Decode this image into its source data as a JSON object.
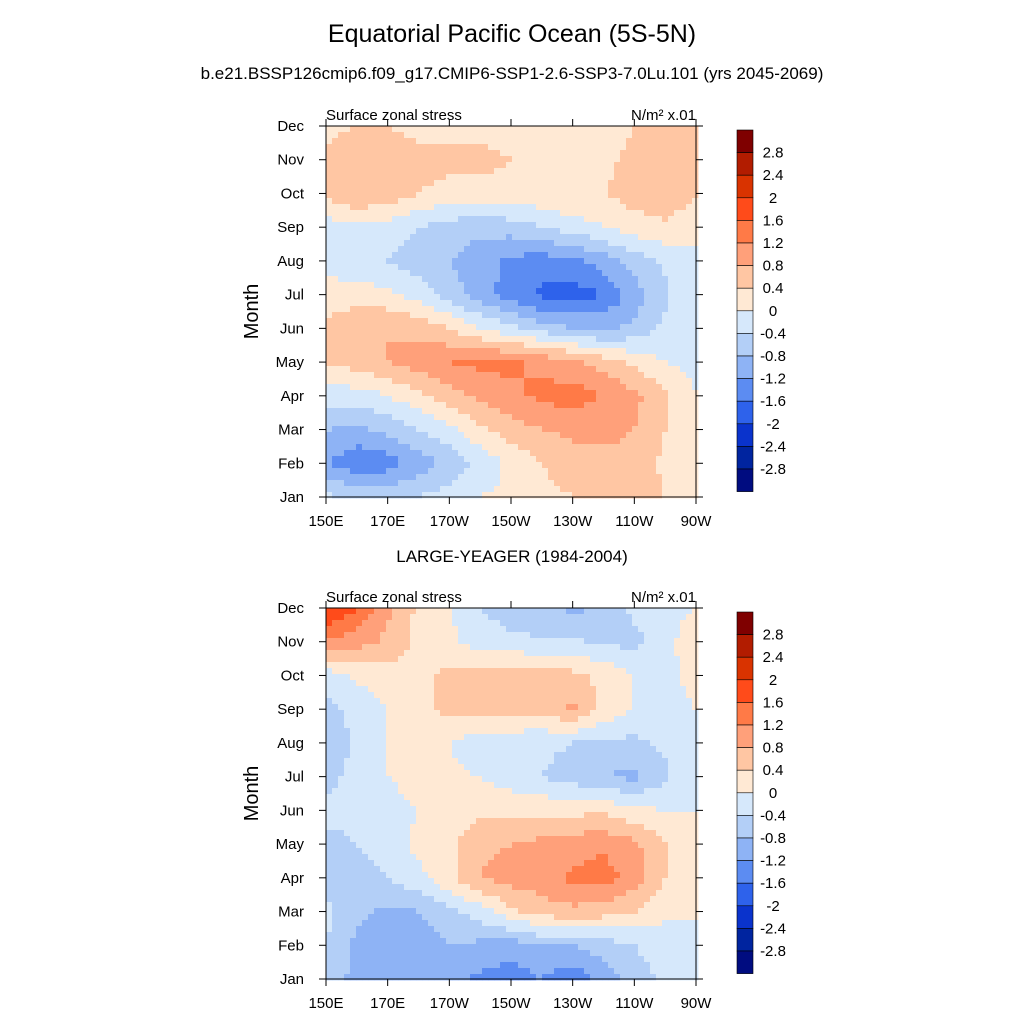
{
  "page": {
    "title": "Equatorial Pacific Ocean (5S-5N)",
    "subtitle": "b.e21.BSSP126cmip6.f09_g17.CMIP6-SSP1-2.6-SSP3-7.0Lu.101 (yrs 2045-2069)",
    "panel2_title": "LARGE-YEAGER (1984-2004)"
  },
  "colorbar": {
    "labels": [
      "2.8",
      "2.4",
      "2",
      "1.6",
      "1.2",
      "0.8",
      "0.4",
      "0",
      "-0.4",
      "-0.8",
      "-1.2",
      "-1.6",
      "-2",
      "-2.4",
      "-2.8"
    ],
    "colors": [
      "#7f0000",
      "#b21c00",
      "#d93300",
      "#ff4b1a",
      "#ff7a47",
      "#ffa07a",
      "#ffc6a3",
      "#ffe9d4",
      "#d6e8fb",
      "#b3cff7",
      "#8eb3f5",
      "#5c8cf2",
      "#2e62eb",
      "#0a33cc",
      "#00249f",
      "#000c80"
    ]
  },
  "chart_data": [
    {
      "type": "heatmap",
      "left_label": "Surface zonal stress",
      "right_label": "N/m² x.01",
      "ylabel": "Month",
      "x_ticks": [
        "150E",
        "170E",
        "170W",
        "150W",
        "130W",
        "110W",
        "90W"
      ],
      "y_ticks": [
        "Jan",
        "Feb",
        "Mar",
        "Apr",
        "May",
        "Jun",
        "Jul",
        "Aug",
        "Sep",
        "Oct",
        "Nov",
        "Dec"
      ],
      "xlim": [
        150,
        270
      ],
      "ylim": [
        1,
        12
      ],
      "levels": [
        -2.8,
        -2.4,
        -2,
        -1.6,
        -1.2,
        -0.8,
        -0.4,
        0,
        0.4,
        0.8,
        1.2,
        1.6,
        2,
        2.4,
        2.8
      ],
      "x_lon": [
        150,
        160,
        170,
        180,
        190,
        200,
        210,
        220,
        230,
        240,
        250,
        260,
        270
      ],
      "z_by_month": [
        [
          -0.3,
          -0.5,
          -0.5,
          -0.4,
          -0.2,
          0.0,
          0.1,
          0.3,
          0.4,
          0.5,
          0.6,
          0.4,
          0.0
        ],
        [
          -1.2,
          -1.5,
          -1.4,
          -1.0,
          -0.7,
          -0.3,
          0.1,
          0.4,
          0.6,
          0.7,
          0.7,
          0.3,
          0.0
        ],
        [
          -0.8,
          -0.9,
          -0.7,
          -0.4,
          -0.1,
          0.3,
          0.6,
          0.8,
          0.9,
          0.9,
          0.8,
          0.4,
          0.0
        ],
        [
          -0.2,
          -0.2,
          0.0,
          0.3,
          0.6,
          0.9,
          1.1,
          1.3,
          1.4,
          1.2,
          0.9,
          0.5,
          0.0
        ],
        [
          0.4,
          0.6,
          0.8,
          1.0,
          1.2,
          1.3,
          1.3,
          1.1,
          0.9,
          0.6,
          0.3,
          0.0,
          -0.1
        ],
        [
          0.5,
          0.7,
          0.8,
          0.7,
          0.4,
          0.0,
          -0.3,
          -0.6,
          -0.8,
          -0.9,
          -0.7,
          -0.3,
          0.0
        ],
        [
          0.2,
          0.2,
          0.1,
          -0.2,
          -0.6,
          -1.0,
          -1.4,
          -1.7,
          -1.8,
          -1.6,
          -1.0,
          -0.5,
          0.0
        ],
        [
          -0.2,
          -0.3,
          -0.4,
          -0.6,
          -0.8,
          -1.0,
          -1.3,
          -1.4,
          -1.3,
          -1.0,
          -0.6,
          -0.3,
          0.0
        ],
        [
          -0.2,
          -0.1,
          -0.2,
          -0.4,
          -0.6,
          -0.7,
          -0.6,
          -0.4,
          -0.2,
          0.0,
          0.2,
          0.3,
          0.0
        ],
        [
          0.5,
          0.8,
          0.7,
          0.4,
          0.3,
          0.3,
          0.3,
          0.3,
          0.4,
          0.4,
          0.6,
          0.8,
          0.5
        ],
        [
          0.5,
          0.6,
          0.6,
          0.5,
          0.5,
          0.5,
          0.4,
          0.3,
          0.3,
          0.3,
          0.5,
          0.6,
          0.5
        ],
        [
          0.3,
          0.4,
          0.4,
          0.3,
          0.3,
          0.3,
          0.2,
          0.2,
          0.2,
          0.2,
          0.4,
          0.5,
          0.4
        ]
      ]
    },
    {
      "type": "heatmap",
      "left_label": "Surface zonal stress",
      "right_label": "N/m² x.01",
      "ylabel": "Month",
      "x_ticks": [
        "150E",
        "170E",
        "170W",
        "150W",
        "130W",
        "110W",
        "90W"
      ],
      "y_ticks": [
        "Jan",
        "Feb",
        "Mar",
        "Apr",
        "May",
        "Jun",
        "Jul",
        "Aug",
        "Sep",
        "Oct",
        "Nov",
        "Dec"
      ],
      "xlim": [
        150,
        270
      ],
      "ylim": [
        1,
        12
      ],
      "levels": [
        -2.8,
        -2.4,
        -2,
        -1.6,
        -1.2,
        -0.8,
        -0.4,
        0,
        0.4,
        0.8,
        1.2,
        1.6,
        2,
        2.4,
        2.8
      ],
      "x_lon": [
        150,
        160,
        170,
        180,
        190,
        200,
        210,
        220,
        230,
        240,
        250,
        260,
        270
      ],
      "z_by_month": [
        [
          -0.6,
          -0.9,
          -1.0,
          -0.9,
          -1.0,
          -1.3,
          -1.4,
          -1.2,
          -1.5,
          -1.0,
          -0.6,
          -0.3,
          0.0
        ],
        [
          -0.4,
          -0.9,
          -1.1,
          -1.0,
          -0.8,
          -0.9,
          -1.0,
          -0.8,
          -0.8,
          -0.6,
          -0.4,
          -0.2,
          0.0
        ],
        [
          -0.3,
          -0.7,
          -0.9,
          -0.8,
          -0.5,
          -0.2,
          0.3,
          0.6,
          0.7,
          0.6,
          0.4,
          0.1,
          0.0
        ],
        [
          -0.5,
          -0.6,
          -0.4,
          -0.1,
          0.3,
          0.8,
          1.0,
          1.0,
          1.3,
          1.4,
          1.0,
          0.4,
          0.0
        ],
        [
          -0.5,
          -0.4,
          -0.2,
          0.1,
          0.3,
          0.7,
          0.8,
          0.9,
          1.0,
          1.1,
          0.9,
          0.4,
          0.1
        ],
        [
          -0.3,
          -0.3,
          -0.2,
          0.0,
          0.2,
          0.3,
          0.3,
          0.3,
          0.3,
          0.3,
          0.1,
          0.0,
          0.0
        ],
        [
          -0.5,
          -0.3,
          0.0,
          0.2,
          0.1,
          0.0,
          -0.2,
          -0.4,
          -0.6,
          -0.8,
          -0.9,
          -0.5,
          0.0
        ],
        [
          -0.7,
          -0.3,
          0.0,
          0.2,
          0.0,
          -0.3,
          -0.3,
          -0.3,
          -0.4,
          -0.5,
          -0.5,
          -0.3,
          0.0
        ],
        [
          -0.5,
          -0.3,
          0.0,
          0.3,
          0.5,
          0.6,
          0.6,
          0.5,
          0.9,
          0.3,
          0.0,
          -0.2,
          0.0
        ],
        [
          -0.2,
          0.1,
          0.2,
          0.3,
          0.5,
          0.6,
          0.7,
          0.6,
          0.5,
          0.3,
          0.0,
          -0.2,
          0.2
        ],
        [
          1.1,
          1.0,
          0.7,
          0.3,
          0.1,
          -0.2,
          -0.3,
          -0.4,
          -0.3,
          -0.5,
          -0.5,
          -0.2,
          0.4
        ],
        [
          2.1,
          1.6,
          0.9,
          0.3,
          0.0,
          -0.4,
          -0.6,
          -0.5,
          -0.9,
          -0.7,
          -0.3,
          -0.2,
          0.0
        ]
      ]
    }
  ]
}
